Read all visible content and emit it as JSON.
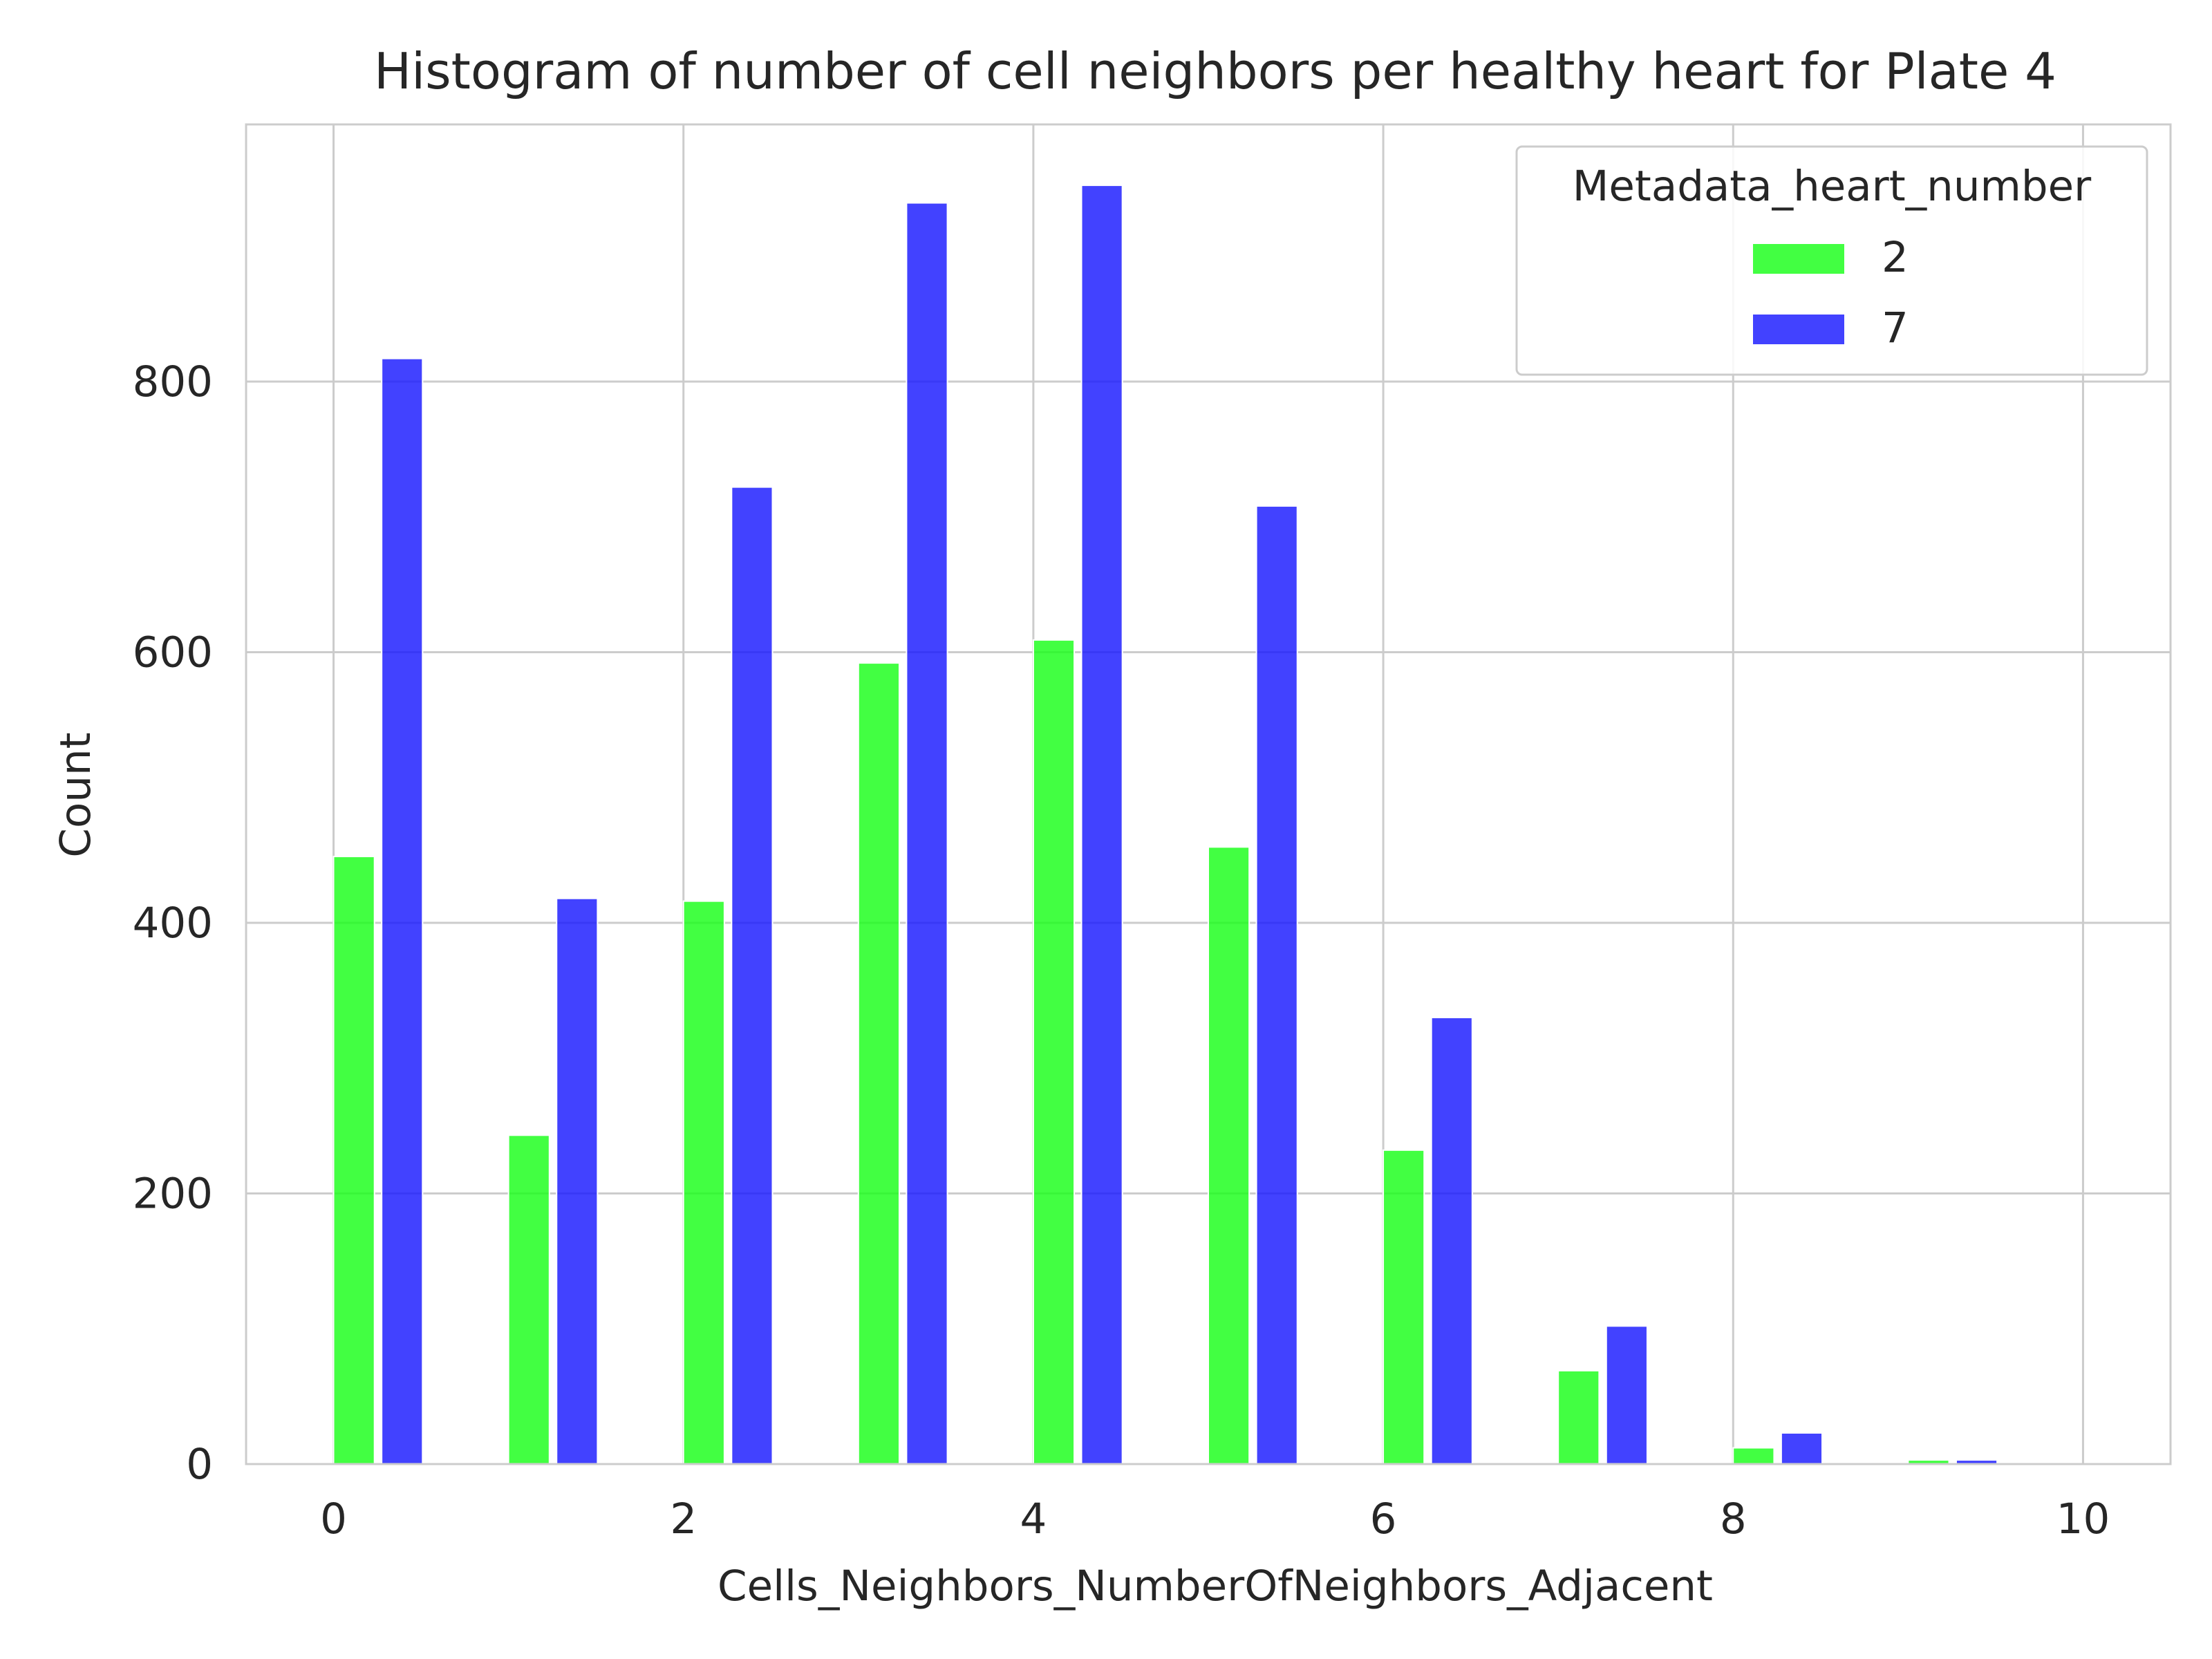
{
  "chart_data": {
    "type": "bar",
    "title": "Histogram of number of cell neighbors per healthy heart for Plate 4",
    "xlabel": "Cells_Neighbors_NumberOfNeighbors_Adjacent",
    "ylabel": "Count",
    "xlim": [
      -0.5,
      10.5
    ],
    "ylim": [
      0,
      990
    ],
    "x_ticks": [
      0,
      2,
      4,
      6,
      8,
      10
    ],
    "y_ticks": [
      0,
      200,
      400,
      600,
      800
    ],
    "grid": true,
    "legend": {
      "title": "Metadata_heart_number",
      "position": "top-right"
    },
    "categories": [
      0,
      1,
      2,
      3,
      4,
      5,
      6,
      7,
      8,
      9
    ],
    "series": [
      {
        "name": "2",
        "color": "#18ff18",
        "values": [
          449,
          243,
          416,
          592,
          609,
          456,
          232,
          69,
          12,
          3
        ]
      },
      {
        "name": "7",
        "color": "#1818ff",
        "values": [
          817,
          418,
          722,
          932,
          945,
          708,
          330,
          102,
          23,
          3
        ]
      }
    ]
  }
}
